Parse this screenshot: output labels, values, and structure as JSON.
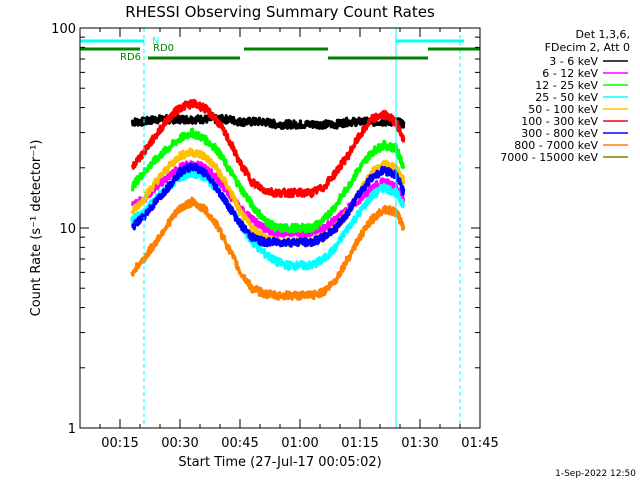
{
  "footer_timestamp": "1-Sep-2022 12:50",
  "chart_data": {
    "type": "line",
    "title": "RHESSI Observing Summary Count Rates",
    "xlabel": "Start Time (27-Jul-17 00:05:02)",
    "ylabel": "Count Rate (s⁻¹ detector⁻¹)",
    "y_scale": "log",
    "xlim": [
      "00:05",
      "01:45"
    ],
    "ylim": [
      1,
      100
    ],
    "grid": false,
    "legend_position": "right",
    "x_ticks": [
      "00:15",
      "00:30",
      "00:45",
      "01:00",
      "01:15",
      "01:30",
      "01:45"
    ],
    "y_ticks": [
      1,
      10,
      100
    ],
    "y_tick_labels": [
      "1",
      "10",
      "100"
    ],
    "legend_header": [
      "Det 1,3,6,",
      "FDecim 2, Att 0"
    ],
    "x": [
      "00:18",
      "00:21",
      "00:24",
      "00:27",
      "00:30",
      "00:33",
      "00:36",
      "00:39",
      "00:42",
      "00:45",
      "00:48",
      "00:51",
      "00:54",
      "00:57",
      "01:00",
      "01:03",
      "01:06",
      "01:09",
      "01:12",
      "01:15",
      "01:18",
      "01:21",
      "01:24",
      "01:26"
    ],
    "series": [
      {
        "name": "3 - 6 keV",
        "color": "#000000",
        "values": [
          34,
          34,
          35,
          35,
          35,
          35,
          35,
          35,
          35,
          34,
          34,
          34,
          33,
          33,
          33,
          33,
          33,
          33,
          34,
          34,
          34,
          34,
          34,
          33
        ]
      },
      {
        "name": "6 - 12 keV",
        "color": "#ff00ff",
        "values": [
          13,
          14,
          16,
          18,
          20,
          21,
          20,
          18,
          15,
          12.5,
          11,
          10,
          9.5,
          9.5,
          9.5,
          9.5,
          10,
          11,
          12.5,
          14,
          16,
          17,
          16,
          14
        ]
      },
      {
        "name": "12 - 25 keV",
        "color": "#00ff00",
        "values": [
          16,
          19,
          22,
          25,
          28,
          30,
          28,
          25,
          20,
          16,
          13,
          11,
          10,
          10,
          10,
          10,
          11,
          13,
          16,
          20,
          24,
          26,
          25,
          20
        ]
      },
      {
        "name": "25 - 50 keV",
        "color": "#00ffff",
        "values": [
          11,
          12,
          14,
          16,
          18,
          19,
          18,
          16,
          13,
          10.5,
          8.5,
          7.5,
          6.8,
          6.5,
          6.5,
          6.5,
          7,
          8,
          10,
          12,
          14.5,
          16,
          15,
          13
        ]
      },
      {
        "name": "50 - 100 keV",
        "color": "#ffc000",
        "values": [
          12,
          14,
          17,
          20,
          23,
          24,
          23,
          20,
          16,
          12,
          10,
          9,
          8.5,
          8.5,
          8.5,
          8.5,
          9,
          10,
          12,
          15,
          19,
          21,
          20,
          17
        ]
      },
      {
        "name": "100 - 300 keV",
        "color": "#ff0000",
        "values": [
          20,
          24,
          29,
          35,
          40,
          42,
          40,
          35,
          28,
          21,
          17,
          15.5,
          15,
          15,
          15,
          15,
          16,
          19,
          23,
          29,
          35,
          37,
          34,
          27
        ]
      },
      {
        "name": "300 - 800 keV",
        "color": "#0000ff",
        "values": [
          10,
          11.5,
          13.5,
          16,
          19,
          20.5,
          19,
          16,
          13,
          10.5,
          9,
          8.5,
          8.5,
          8.5,
          8.5,
          8.5,
          9,
          10,
          12,
          15,
          18,
          19.5,
          18.5,
          15
        ]
      },
      {
        "name": "800 - 7000 keV",
        "color": "#ff8000",
        "values": [
          6,
          7,
          8.5,
          10.5,
          12.5,
          13.5,
          12.5,
          10.5,
          8,
          6,
          5,
          4.7,
          4.6,
          4.6,
          4.6,
          4.6,
          4.8,
          5.5,
          7,
          9,
          11,
          12.5,
          12,
          10
        ]
      },
      {
        "name": "7000 - 15000 keV",
        "color": "#808000",
        "values": [
          null,
          null,
          null,
          null,
          null,
          null,
          null,
          null,
          null,
          null,
          null,
          null,
          null,
          null,
          null,
          null,
          null,
          null,
          null,
          null,
          null,
          null,
          null,
          null
        ]
      }
    ],
    "annotations": [
      {
        "label": "N",
        "color": "#00ffff",
        "segments": [
          [
            "00:05",
            "00:21"
          ],
          [
            "01:24",
            "01:41"
          ]
        ],
        "row": 0
      },
      {
        "label": "RD0",
        "color": "#008000",
        "segments": [
          [
            "00:05",
            "00:20"
          ],
          [
            "00:46",
            "01:07"
          ],
          [
            "01:32",
            "01:45"
          ]
        ],
        "row": 1
      },
      {
        "label": "RD6",
        "color": "#008000",
        "segments": [
          [
            "00:22",
            "00:45"
          ],
          [
            "01:07",
            "01:32"
          ]
        ],
        "row": 2
      }
    ],
    "vlines": [
      {
        "time": "00:05",
        "style": "solid",
        "color": "#00ffff"
      },
      {
        "time": "00:21",
        "style": "dashed",
        "color": "#00ffff"
      },
      {
        "time": "01:24",
        "style": "solid",
        "color": "#00ffff"
      },
      {
        "time": "01:40",
        "style": "dashed",
        "color": "#00ffff"
      }
    ]
  }
}
